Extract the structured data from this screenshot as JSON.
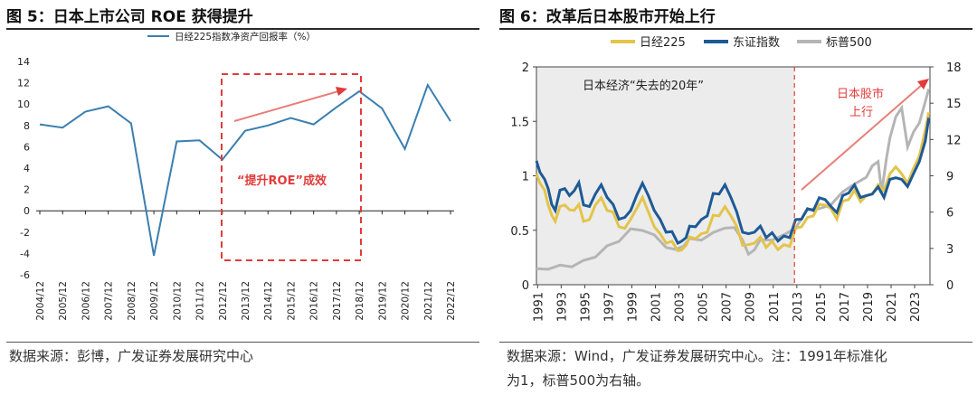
{
  "left_panel": {
    "title": "图 5：日本上市公司 ROE 获得提升",
    "source": "数据来源：彭博，广发证券发展研究中心"
  },
  "right_panel": {
    "title": "图 6：改革后日本股市开始上行",
    "source_line1": "数据来源：Wind，广发证券发展研究中心。注：1991年标准化",
    "source_line2": "为1，标普500为右轴。"
  },
  "colors": {
    "roe": "#3b7fb0",
    "nikkei": "#e3c44b",
    "topix": "#1e5a95",
    "sp500": "#b5b5b5",
    "annotation": "#e23b3b"
  },
  "chart_data": [
    {
      "type": "line",
      "title": "",
      "legend": "日经225指数净资产回报率（%）",
      "legend_placement": "top-center",
      "x": [
        "2004/12",
        "2005/12",
        "2006/12",
        "2007/12",
        "2008/12",
        "2009/12",
        "2010/12",
        "2011/12",
        "2012/12",
        "2013/12",
        "2014/12",
        "2015/12",
        "2016/12",
        "2017/12",
        "2018/12",
        "2019/12",
        "2020/12",
        "2021/12",
        "2022/12"
      ],
      "series": [
        {
          "name": "日经225指数净资产回报率（%）",
          "values": [
            8.1,
            7.8,
            9.3,
            9.8,
            8.2,
            -4.2,
            6.5,
            6.6,
            4.8,
            7.5,
            8.0,
            8.7,
            8.1,
            9.7,
            11.2,
            9.6,
            5.8,
            11.8,
            8.4
          ]
        }
      ],
      "ylim": [
        -6,
        14
      ],
      "yticks": [
        "14",
        "12",
        "10",
        "8",
        "6",
        "4",
        "2",
        "0",
        "-2",
        "-4",
        "-6"
      ],
      "annotations": {
        "box_label": "“提升ROE”成效"
      }
    },
    {
      "type": "line",
      "title": "",
      "legend_placement": "top",
      "xticks": [
        "1991",
        "1993",
        "1995",
        "1997",
        "1999",
        "2001",
        "2003",
        "2005",
        "2007",
        "2009",
        "2011",
        "2013",
        "2015",
        "2017",
        "2019",
        "2021",
        "2023"
      ],
      "ylim_left": [
        0,
        2
      ],
      "yticks_left": [
        "2",
        "1.5",
        "1",
        "0.5",
        "0"
      ],
      "ylim_right": [
        0,
        18
      ],
      "yticks_right": [
        "18",
        "15",
        "12",
        "9",
        "6",
        "3",
        "0"
      ],
      "series": [
        {
          "name": "日经225",
          "axis": "left",
          "x": [
            1991,
            1991.3,
            1991.7,
            1992,
            1992.3,
            1992.6,
            1993,
            1993.4,
            1993.8,
            1994.2,
            1994.6,
            1995,
            1995.5,
            1996,
            1996.5,
            1997,
            1997.5,
            1998,
            1998.5,
            1999,
            1999.5,
            2000,
            2000.5,
            2001,
            2001.5,
            2002,
            2002.5,
            2003,
            2003.3,
            2003.7,
            2004,
            2004.5,
            2005,
            2005.5,
            2006,
            2006.5,
            2007,
            2007.5,
            2008,
            2008.5,
            2009,
            2009.5,
            2010,
            2010.5,
            2011,
            2011.5,
            2012,
            2012.5,
            2013,
            2013.5,
            2014,
            2014.5,
            2015,
            2015.5,
            2016,
            2016.5,
            2017,
            2017.5,
            2018,
            2018.5,
            2019,
            2019.5,
            2020,
            2020.5,
            2021,
            2021.5,
            2022,
            2022.5,
            2023,
            2023.5,
            2024,
            2024.3
          ],
          "values": [
            1.0,
            0.95,
            0.85,
            0.75,
            0.62,
            0.6,
            0.7,
            0.75,
            0.67,
            0.7,
            0.72,
            0.6,
            0.58,
            0.75,
            0.78,
            0.7,
            0.65,
            0.55,
            0.5,
            0.62,
            0.68,
            0.82,
            0.65,
            0.55,
            0.45,
            0.4,
            0.38,
            0.33,
            0.3,
            0.38,
            0.42,
            0.44,
            0.45,
            0.5,
            0.62,
            0.65,
            0.7,
            0.65,
            0.52,
            0.38,
            0.35,
            0.4,
            0.42,
            0.36,
            0.38,
            0.34,
            0.35,
            0.37,
            0.5,
            0.55,
            0.6,
            0.65,
            0.72,
            0.75,
            0.68,
            0.62,
            0.75,
            0.8,
            0.85,
            0.78,
            0.8,
            0.85,
            0.9,
            0.88,
            1.0,
            1.1,
            1.0,
            0.95,
            1.05,
            1.2,
            1.4,
            1.6
          ]
        },
        {
          "name": "东证指数",
          "axis": "left",
          "x": [
            1991,
            1991.3,
            1991.7,
            1992,
            1992.3,
            1992.6,
            1993,
            1993.4,
            1993.8,
            1994.2,
            1994.6,
            1995,
            1995.5,
            1996,
            1996.5,
            1997,
            1997.5,
            1998,
            1998.5,
            1999,
            1999.5,
            2000,
            2000.5,
            2001,
            2001.5,
            2002,
            2002.5,
            2003,
            2003.3,
            2003.7,
            2004,
            2004.5,
            2005,
            2005.5,
            2006,
            2006.5,
            2007,
            2007.5,
            2008,
            2008.5,
            2009,
            2009.5,
            2010,
            2010.5,
            2011,
            2011.5,
            2012,
            2012.5,
            2013,
            2013.5,
            2014,
            2014.5,
            2015,
            2015.5,
            2016,
            2016.5,
            2017,
            2017.5,
            2018,
            2018.5,
            2019,
            2019.5,
            2020,
            2020.5,
            2021,
            2021.5,
            2022,
            2022.5,
            2023,
            2023.5,
            2024,
            2024.3
          ],
          "values": [
            1.12,
            1.05,
            0.95,
            0.9,
            0.72,
            0.7,
            0.85,
            0.9,
            0.8,
            0.88,
            0.92,
            0.75,
            0.7,
            0.85,
            0.9,
            0.82,
            0.72,
            0.62,
            0.6,
            0.7,
            0.8,
            0.95,
            0.8,
            0.7,
            0.58,
            0.5,
            0.47,
            0.4,
            0.38,
            0.45,
            0.52,
            0.55,
            0.58,
            0.65,
            0.82,
            0.85,
            0.9,
            0.82,
            0.65,
            0.5,
            0.45,
            0.5,
            0.52,
            0.45,
            0.46,
            0.42,
            0.43,
            0.45,
            0.58,
            0.62,
            0.68,
            0.7,
            0.78,
            0.8,
            0.7,
            0.68,
            0.8,
            0.86,
            0.9,
            0.82,
            0.8,
            0.85,
            0.88,
            0.82,
            0.95,
            1.0,
            0.95,
            0.92,
            1.0,
            1.15,
            1.3,
            1.55
          ]
        },
        {
          "name": "标普500",
          "axis": "right",
          "x": [
            1991,
            1992,
            1993,
            1994,
            1995,
            1996,
            1997,
            1998,
            1999,
            2000,
            2001,
            2002,
            2002.8,
            2003.5,
            2004,
            2005,
            2006,
            2007,
            2007.8,
            2008.5,
            2009,
            2009.5,
            2010,
            2011,
            2012,
            2013,
            2014,
            2015,
            2016,
            2017,
            2018,
            2019,
            2019.5,
            2020,
            2020.3,
            2020.7,
            2021,
            2021.5,
            2022,
            2022.5,
            2023,
            2023.5,
            2024,
            2024.3
          ],
          "values": [
            1.2,
            1.4,
            1.5,
            1.6,
            1.9,
            2.4,
            3.1,
            3.7,
            4.5,
            4.6,
            4.0,
            3.2,
            2.8,
            3.3,
            3.7,
            3.8,
            4.2,
            4.8,
            4.6,
            3.8,
            2.4,
            3.0,
            3.6,
            3.8,
            4.0,
            4.8,
            6.1,
            6.4,
            6.5,
            7.8,
            8.2,
            9.0,
            9.7,
            10.3,
            7.5,
            10.5,
            12.0,
            14.0,
            14.5,
            11.5,
            12.5,
            13.5,
            15.0,
            16.3
          ]
        }
      ],
      "annotations": {
        "period_label": "日本经济“失去的20年”",
        "trend_label_line1": "日本股市",
        "trend_label_line2": "上行"
      }
    }
  ]
}
